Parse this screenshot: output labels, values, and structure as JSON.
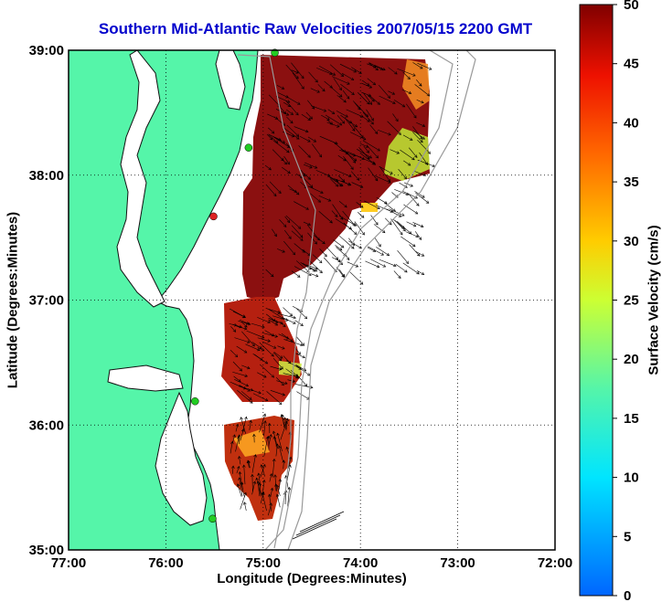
{
  "title": "Southern Mid-Atlantic Raw Velocities 2007/05/15 2200 GMT",
  "xlabel": "Longitude (Degrees:Minutes)",
  "ylabel": "Latitude (Degrees:Minutes)",
  "colorbar": {
    "label": "Surface Velocity (cm/s)",
    "min": 0,
    "max": 50,
    "ticks": [
      "0",
      "5",
      "10",
      "15",
      "20",
      "25",
      "30",
      "35",
      "40",
      "45",
      "50"
    ]
  },
  "axes": {
    "x_ticks": [
      "77:00",
      "76:00",
      "75:00",
      "74:00",
      "73:00",
      "72:00"
    ],
    "y_ticks": [
      "39:00",
      "38:00",
      "37:00",
      "36:00",
      "35:00"
    ],
    "lon_range": [
      -77,
      -72
    ],
    "lat_range": [
      35,
      39
    ],
    "grid": "dotted"
  },
  "colors": {
    "land": "#55f5a9",
    "water": "#ffffff",
    "title": "#0000cc",
    "station": "#22cc22",
    "station_offline": "#dd2222"
  },
  "stations": [
    {
      "lon": -74.88,
      "lat": 38.98,
      "status": "online"
    },
    {
      "lon": -75.15,
      "lat": 38.22,
      "status": "online"
    },
    {
      "lon": -75.51,
      "lat": 37.67,
      "status": "offline"
    },
    {
      "lon": -75.7,
      "lat": 36.19,
      "status": "online"
    },
    {
      "lon": -75.52,
      "lat": 35.25,
      "status": "online"
    }
  ]
}
